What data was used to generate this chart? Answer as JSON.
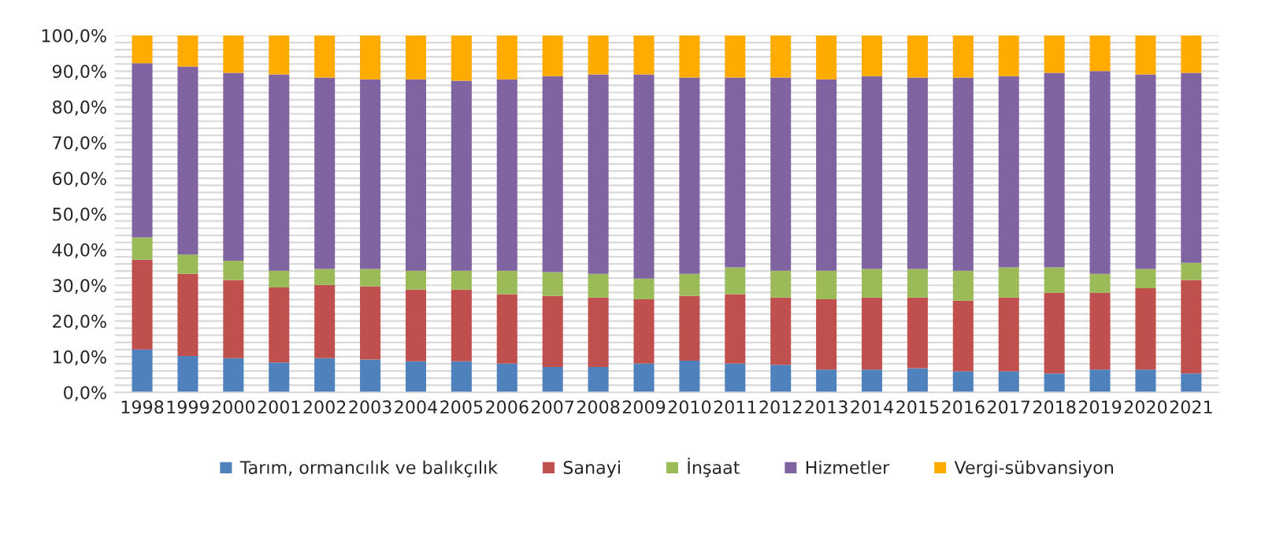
{
  "chart_data": {
    "type": "bar",
    "stacked": true,
    "categories": [
      "1998",
      "1999",
      "2000",
      "2001",
      "2002",
      "2003",
      "2004",
      "2005",
      "2006",
      "2007",
      "2008",
      "2009",
      "2010",
      "2011",
      "2012",
      "2013",
      "2014",
      "2015",
      "2016",
      "2017",
      "2018",
      "2019",
      "2020",
      "2021"
    ],
    "series": [
      {
        "name": "Tarım, ormancılık ve balıkçılık",
        "color": "#4f81bd",
        "values": [
          12.0,
          10.2,
          9.6,
          8.4,
          9.6,
          9.2,
          8.7,
          8.7,
          8.1,
          7.1,
          7.1,
          8.1,
          8.9,
          8.1,
          7.7,
          6.4,
          6.4,
          6.8,
          5.9,
          5.9,
          5.3,
          6.4,
          6.4,
          5.3
        ]
      },
      {
        "name": "Sanayi",
        "color": "#c0504d",
        "values": [
          25.2,
          23.0,
          21.9,
          21.0,
          20.5,
          20.5,
          20.1,
          20.1,
          19.4,
          19.9,
          19.5,
          18.0,
          18.1,
          19.4,
          18.9,
          19.7,
          20.2,
          19.8,
          19.8,
          20.7,
          22.6,
          21.5,
          22.8,
          26.2
        ]
      },
      {
        "name": "İnşaat",
        "color": "#9bbb59",
        "values": [
          6.2,
          5.4,
          5.4,
          4.7,
          4.5,
          4.9,
          5.3,
          5.3,
          6.6,
          6.7,
          6.6,
          5.8,
          6.2,
          7.5,
          7.5,
          8.0,
          8.0,
          8.0,
          8.4,
          8.4,
          7.1,
          5.3,
          5.4,
          4.8
        ]
      },
      {
        "name": "Hizmetler",
        "color": "#8064a2",
        "values": [
          48.8,
          52.7,
          52.6,
          55.0,
          53.6,
          53.1,
          53.6,
          53.2,
          53.6,
          54.9,
          55.9,
          57.2,
          55.0,
          53.2,
          54.1,
          53.6,
          54.0,
          53.6,
          54.1,
          53.6,
          54.5,
          56.8,
          54.5,
          53.2
        ]
      },
      {
        "name": "Vergi-sübvansiyon",
        "color": "#ffab00",
        "values": [
          7.8,
          8.7,
          10.5,
          10.9,
          11.8,
          12.3,
          12.3,
          12.7,
          12.3,
          11.4,
          10.9,
          10.9,
          11.8,
          11.8,
          11.8,
          12.3,
          11.4,
          11.8,
          11.8,
          11.4,
          10.5,
          10.0,
          10.9,
          10.5
        ]
      }
    ],
    "ylim": [
      0,
      100
    ],
    "yticks": [
      {
        "value": 0,
        "label": "0,0%"
      },
      {
        "value": 2,
        "label": null
      },
      {
        "value": 4,
        "label": null
      },
      {
        "value": 6,
        "label": null
      },
      {
        "value": 8,
        "label": null
      },
      {
        "value": 10,
        "label": "10,0%"
      },
      {
        "value": 12,
        "label": null
      },
      {
        "value": 14,
        "label": null
      },
      {
        "value": 16,
        "label": null
      },
      {
        "value": 18,
        "label": null
      },
      {
        "value": 20,
        "label": "20,0%"
      },
      {
        "value": 22,
        "label": null
      },
      {
        "value": 24,
        "label": null
      },
      {
        "value": 26,
        "label": null
      },
      {
        "value": 28,
        "label": null
      },
      {
        "value": 30,
        "label": "30,0%"
      },
      {
        "value": 32,
        "label": null
      },
      {
        "value": 34,
        "label": null
      },
      {
        "value": 36,
        "label": null
      },
      {
        "value": 38,
        "label": null
      },
      {
        "value": 40,
        "label": "40,0%"
      },
      {
        "value": 42,
        "label": null
      },
      {
        "value": 44,
        "label": null
      },
      {
        "value": 46,
        "label": null
      },
      {
        "value": 48,
        "label": null
      },
      {
        "value": 50,
        "label": "50,0%"
      },
      {
        "value": 52,
        "label": null
      },
      {
        "value": 54,
        "label": null
      },
      {
        "value": 56,
        "label": null
      },
      {
        "value": 58,
        "label": null
      },
      {
        "value": 60,
        "label": "60,0%"
      },
      {
        "value": 62,
        "label": null
      },
      {
        "value": 64,
        "label": null
      },
      {
        "value": 66,
        "label": null
      },
      {
        "value": 68,
        "label": null
      },
      {
        "value": 70,
        "label": "70,0%"
      },
      {
        "value": 72,
        "label": null
      },
      {
        "value": 74,
        "label": null
      },
      {
        "value": 76,
        "label": null
      },
      {
        "value": 78,
        "label": null
      },
      {
        "value": 80,
        "label": "80,0%"
      },
      {
        "value": 82,
        "label": null
      },
      {
        "value": 84,
        "label": null
      },
      {
        "value": 86,
        "label": null
      },
      {
        "value": 88,
        "label": null
      },
      {
        "value": 90,
        "label": "90,0%"
      },
      {
        "value": 92,
        "label": null
      },
      {
        "value": 94,
        "label": null
      },
      {
        "value": 96,
        "label": null
      },
      {
        "value": 98,
        "label": null
      },
      {
        "value": 100,
        "label": "100,0%"
      }
    ],
    "grid": "y",
    "legend": "bottom"
  }
}
